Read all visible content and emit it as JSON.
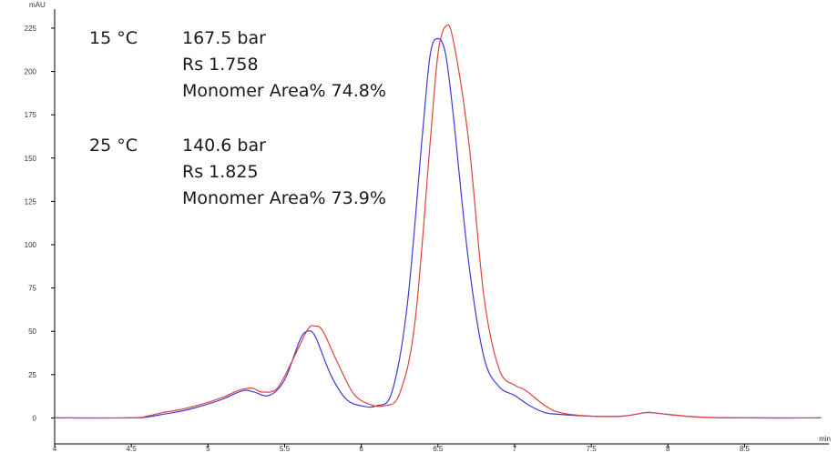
{
  "chart_data": {
    "type": "line",
    "xlabel": "min",
    "ylabel": "mAU",
    "xlim": [
      4,
      9.05
    ],
    "ylim": [
      -15,
      236
    ],
    "x_ticks": [
      "4",
      "4.5",
      "5",
      "5.5",
      "6",
      "6.5",
      "7",
      "7.5",
      "8",
      "8.5"
    ],
    "y_ticks": [
      "0",
      "25",
      "50",
      "75",
      "100",
      "125",
      "150",
      "175",
      "200",
      "225"
    ],
    "series": [
      {
        "color": "#3b3bd9",
        "x": [
          4.0,
          4.5,
          4.6,
          4.7,
          4.8,
          4.9,
          5.0,
          5.1,
          5.2,
          5.25,
          5.3,
          5.4,
          5.5,
          5.6,
          5.65,
          5.7,
          5.8,
          5.9,
          6.0,
          6.1,
          6.2,
          6.3,
          6.4,
          6.45,
          6.5,
          6.55,
          6.6,
          6.7,
          6.8,
          6.9,
          7.0,
          7.1,
          7.2,
          7.3,
          7.5,
          7.7,
          7.85,
          7.9,
          8.0,
          8.2,
          8.5,
          9.0
        ],
        "y": [
          0,
          0,
          0.5,
          2,
          3.5,
          5.5,
          8,
          11,
          15,
          16,
          15,
          13,
          22,
          45,
          50,
          47,
          25,
          11,
          7,
          7,
          15,
          65,
          165,
          210,
          219,
          210,
          175,
          90,
          35,
          18,
          13,
          7,
          3,
          2,
          1,
          1,
          3,
          3,
          2,
          0.5,
          0,
          0
        ]
      },
      {
        "color": "#e34040",
        "x": [
          4.0,
          4.5,
          4.6,
          4.7,
          4.8,
          4.9,
          5.0,
          5.1,
          5.2,
          5.25,
          5.3,
          5.35,
          5.45,
          5.55,
          5.65,
          5.7,
          5.75,
          5.85,
          5.95,
          6.05,
          6.15,
          6.25,
          6.35,
          6.45,
          6.5,
          6.55,
          6.6,
          6.7,
          6.8,
          6.9,
          7.0,
          7.05,
          7.1,
          7.2,
          7.3,
          7.5,
          7.7,
          7.85,
          7.9,
          8.0,
          8.2,
          8.5,
          9.0
        ],
        "y": [
          0,
          0,
          1,
          3,
          4.5,
          6.5,
          9,
          12,
          16,
          17,
          17,
          15,
          17,
          33,
          51,
          53,
          50,
          31,
          14,
          8,
          7,
          14,
          55,
          160,
          210,
          226,
          218,
          160,
          70,
          28,
          19,
          17,
          14,
          7,
          3,
          1,
          1,
          3,
          3,
          2,
          0.5,
          0,
          0
        ]
      }
    ],
    "annotations": [
      {
        "label": "15 °C",
        "lines": [
          "167.5 bar",
          "Rs 1.758",
          "Monomer Area% 74.8%"
        ]
      },
      {
        "label": "25 °C",
        "lines": [
          "140.6 bar",
          "Rs 1.825",
          "Monomer Area% 73.9%"
        ]
      }
    ]
  }
}
